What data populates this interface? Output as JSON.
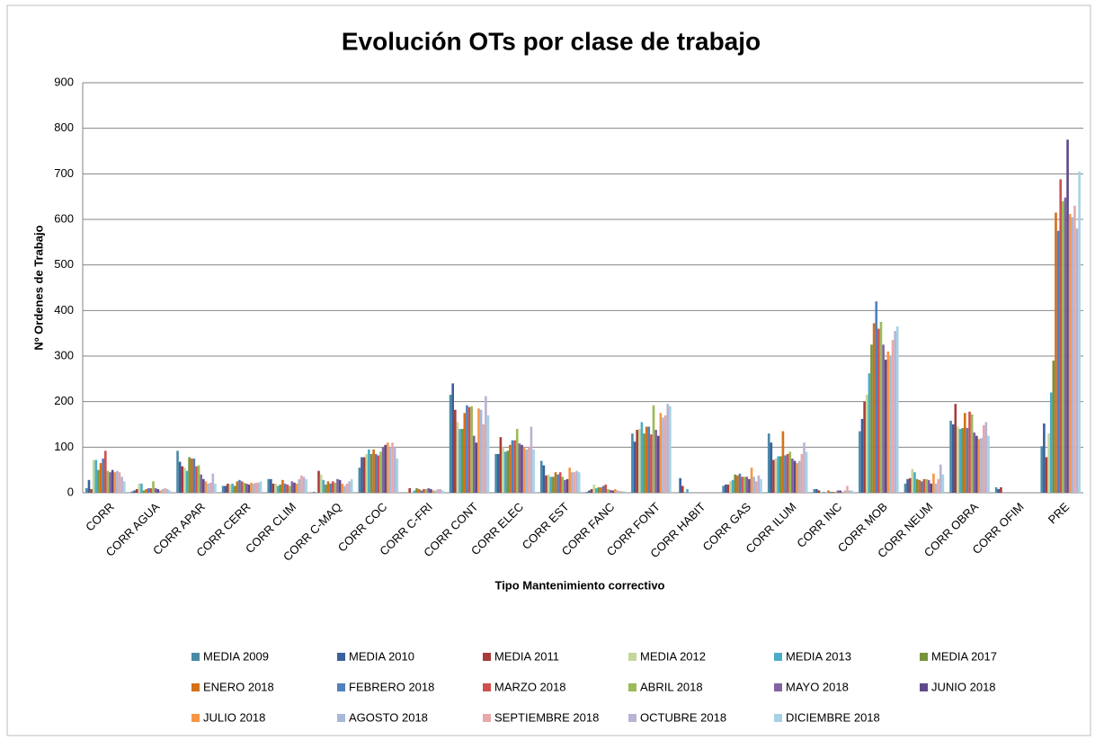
{
  "chart_data": {
    "type": "bar",
    "title": "Evolución OTs por clase de trabajo",
    "x_label": "Tipo Mantenimiento correctivo",
    "y_label": "Nº Ordenes de Trabajo",
    "categories": [
      "CORR",
      "CORR AGUA",
      "CORR APAR",
      "CORR CERR",
      "CORR CLIM",
      "CORR C-MAQ",
      "CORR COC",
      "CORR C-FRI",
      "CORR CONT",
      "CORR ELEC",
      "CORR EST",
      "CORR FANC",
      "CORR FONT",
      "CORR HABIT",
      "CORR GAS",
      "CORR ILUM",
      "CORR INC",
      "CORR MOB",
      "CORR NEUM",
      "CORR OBRA",
      "CORR OFIM",
      "PRE"
    ],
    "ylim": [
      0,
      900
    ],
    "yticks": [
      0,
      100,
      200,
      300,
      400,
      500,
      600,
      700,
      800,
      900
    ],
    "grid": true,
    "legend": "bottom",
    "series": [
      {
        "name": "MEDIA 2009",
        "color": "#4a8aa8",
        "values": [
          10,
          3,
          92,
          15,
          30,
          2,
          55,
          0,
          215,
          85,
          70,
          2,
          130,
          0,
          15,
          130,
          8,
          135,
          20,
          158,
          12,
          102
        ]
      },
      {
        "name": "MEDIA 2010",
        "color": "#3c5f9c",
        "values": [
          28,
          5,
          68,
          15,
          30,
          0,
          78,
          0,
          240,
          85,
          60,
          5,
          112,
          32,
          18,
          110,
          8,
          162,
          30,
          150,
          8,
          152
        ]
      },
      {
        "name": "MEDIA 2011",
        "color": "#a83c3a",
        "values": [
          8,
          8,
          58,
          20,
          20,
          48,
          78,
          10,
          182,
          122,
          38,
          8,
          138,
          15,
          18,
          72,
          5,
          200,
          32,
          195,
          12,
          78
        ]
      },
      {
        "name": "MEDIA 2012",
        "color": "#c4d79b",
        "values": [
          72,
          20,
          55,
          18,
          20,
          40,
          85,
          2,
          155,
          100,
          40,
          18,
          140,
          0,
          25,
          75,
          2,
          215,
          52,
          145,
          0,
          130
        ]
      },
      {
        "name": "MEDIA 2013",
        "color": "#4bacc6",
        "values": [
          72,
          20,
          48,
          20,
          15,
          28,
          95,
          5,
          140,
          90,
          35,
          10,
          155,
          8,
          28,
          80,
          2,
          262,
          45,
          140,
          0,
          220
        ]
      },
      {
        "name": "MEDIA 2017",
        "color": "#77933c",
        "values": [
          50,
          5,
          78,
          15,
          18,
          18,
          85,
          10,
          140,
          92,
          35,
          12,
          130,
          0,
          40,
          80,
          0,
          325,
          30,
          142,
          0,
          290
        ]
      },
      {
        "name": "ENERO 2018",
        "color": "#d4701a",
        "values": [
          65,
          8,
          75,
          25,
          28,
          25,
          95,
          8,
          175,
          105,
          45,
          12,
          145,
          0,
          38,
          135,
          5,
          372,
          28,
          175,
          0,
          615
        ]
      },
      {
        "name": "FEBRERO 2018",
        "color": "#4f81bd",
        "values": [
          75,
          10,
          75,
          28,
          20,
          20,
          85,
          5,
          192,
          115,
          40,
          15,
          145,
          0,
          42,
          82,
          2,
          420,
          25,
          142,
          0,
          575
        ]
      },
      {
        "name": "MARZO 2018",
        "color": "#d0504d",
        "values": [
          92,
          10,
          58,
          25,
          18,
          25,
          82,
          8,
          188,
          115,
          45,
          18,
          128,
          0,
          35,
          85,
          2,
          360,
          30,
          178,
          0,
          688
        ]
      },
      {
        "name": "ABRIL 2018",
        "color": "#9bbb59",
        "values": [
          48,
          25,
          60,
          22,
          15,
          22,
          90,
          8,
          190,
          140,
          35,
          8,
          192,
          0,
          35,
          90,
          2,
          375,
          30,
          172,
          0,
          640
        ]
      },
      {
        "name": "MAYO 2018",
        "color": "#8064a2",
        "values": [
          45,
          10,
          40,
          20,
          25,
          30,
          100,
          10,
          125,
          108,
          28,
          6,
          138,
          0,
          35,
          75,
          5,
          325,
          28,
          132,
          0,
          648
        ]
      },
      {
        "name": "JUNIO 2018",
        "color": "#5e4a8a",
        "values": [
          50,
          8,
          30,
          18,
          22,
          28,
          105,
          8,
          110,
          105,
          30,
          5,
          125,
          0,
          30,
          70,
          5,
          292,
          20,
          125,
          0,
          775
        ]
      },
      {
        "name": "JULIO 2018",
        "color": "#f79646",
        "values": [
          45,
          5,
          25,
          22,
          20,
          20,
          110,
          5,
          185,
          100,
          55,
          8,
          175,
          0,
          55,
          65,
          2,
          310,
          42,
          118,
          0,
          612
        ]
      },
      {
        "name": "AGOSTO 2018",
        "color": "#a7b8d8",
        "values": [
          48,
          8,
          20,
          20,
          30,
          15,
          100,
          5,
          182,
          95,
          45,
          5,
          165,
          0,
          35,
          70,
          5,
          300,
          20,
          120,
          0,
          605
        ]
      },
      {
        "name": "SEPTIEMBRE 2018",
        "color": "#e6a9a8",
        "values": [
          45,
          10,
          22,
          22,
          38,
          20,
          110,
          8,
          150,
          100,
          45,
          4,
          170,
          0,
          25,
          85,
          15,
          335,
          30,
          148,
          0,
          630
        ]
      },
      {
        "name": "OCTUBRE 2018",
        "color": "#bab3d3",
        "values": [
          35,
          8,
          42,
          22,
          35,
          25,
          100,
          8,
          212,
          145,
          48,
          3,
          195,
          0,
          38,
          110,
          5,
          355,
          62,
          155,
          0,
          580
        ]
      },
      {
        "name": "DICIEMBRE 2018",
        "color": "#a6d3e3",
        "values": [
          25,
          5,
          20,
          25,
          30,
          30,
          75,
          5,
          170,
          95,
          45,
          3,
          190,
          0,
          30,
          90,
          5,
          365,
          40,
          125,
          0,
          705
        ]
      }
    ]
  }
}
